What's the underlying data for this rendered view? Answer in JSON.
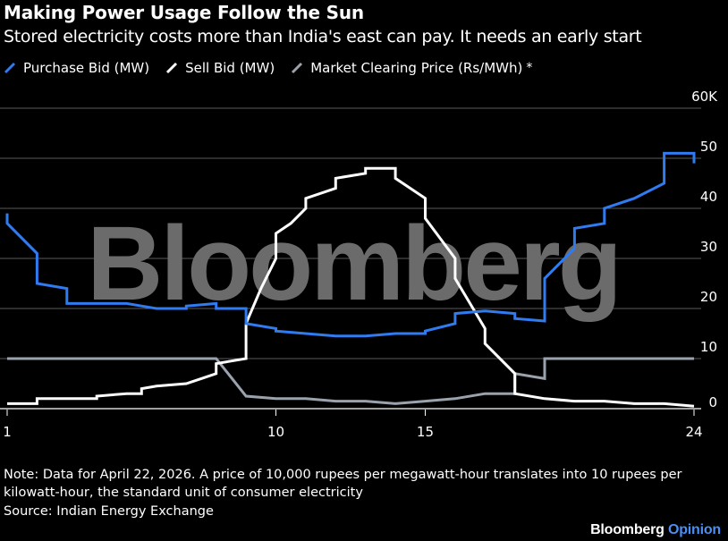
{
  "header": {
    "title": "Making Power Usage Follow the Sun",
    "subtitle": "Stored electricity costs more than India's east can pay. It needs an early start"
  },
  "legend": {
    "items": [
      {
        "label": "Purchase Bid (MW)",
        "color": "#2f7bef"
      },
      {
        "label": "Sell Bid (MW)",
        "color": "#ffffff"
      },
      {
        "label": "Market Clearing Price (Rs/MWh)",
        "color": "#9aa3ad"
      }
    ],
    "footnote_marker": "*"
  },
  "watermark": "Bloomberg",
  "chart_data": {
    "type": "line",
    "xlabel": "",
    "ylabel": "",
    "xlim": [
      1,
      24
    ],
    "ylim": [
      0,
      60
    ],
    "x_ticks": [
      "1",
      "10",
      "15",
      "24"
    ],
    "y_ticks": [
      "60K",
      "50",
      "40",
      "30",
      "20",
      "10",
      "0"
    ],
    "grid": true,
    "x_note": "The three series are stepped lines sampled at 15-minute blocks; points listed as [hour, value] in thousands.",
    "series": [
      {
        "name": "Purchase Bid (MW)",
        "color": "#2f7bef",
        "points": [
          [
            1.0,
            39
          ],
          [
            1.0,
            37
          ],
          [
            2.0,
            31
          ],
          [
            2.0,
            25
          ],
          [
            3.0,
            24
          ],
          [
            3.0,
            21
          ],
          [
            4.0,
            21
          ],
          [
            4.0,
            21
          ],
          [
            5.0,
            21
          ],
          [
            5.5,
            20.5
          ],
          [
            6.0,
            20
          ],
          [
            7.0,
            20
          ],
          [
            7.0,
            20.5
          ],
          [
            8.0,
            21
          ],
          [
            8.0,
            20
          ],
          [
            9.0,
            20
          ],
          [
            9.0,
            17
          ],
          [
            10.0,
            16
          ],
          [
            10.0,
            15.5
          ],
          [
            11.0,
            15
          ],
          [
            12.0,
            14.5
          ],
          [
            13.0,
            14.5
          ],
          [
            14.0,
            15
          ],
          [
            15.0,
            15
          ],
          [
            15.0,
            15.5
          ],
          [
            16.0,
            17
          ],
          [
            16.0,
            19
          ],
          [
            17.0,
            19.5
          ],
          [
            18.0,
            19
          ],
          [
            18.0,
            18
          ],
          [
            19.0,
            17.5
          ],
          [
            19.0,
            26
          ],
          [
            20.0,
            32
          ],
          [
            20.0,
            36
          ],
          [
            21.0,
            37
          ],
          [
            21.0,
            40
          ],
          [
            22.0,
            42
          ],
          [
            23.0,
            45
          ],
          [
            23.0,
            51
          ],
          [
            24.0,
            51
          ],
          [
            24.0,
            49
          ]
        ]
      },
      {
        "name": "Sell Bid (MW)",
        "color": "#ffffff",
        "points": [
          [
            1.0,
            1
          ],
          [
            2.0,
            1
          ],
          [
            2.0,
            2
          ],
          [
            3.0,
            2
          ],
          [
            4.0,
            2
          ],
          [
            4.0,
            2.5
          ],
          [
            5.0,
            3
          ],
          [
            5.5,
            3
          ],
          [
            5.5,
            4
          ],
          [
            6.0,
            4.5
          ],
          [
            7.0,
            5
          ],
          [
            7.5,
            6
          ],
          [
            8.0,
            7
          ],
          [
            8.0,
            9
          ],
          [
            9.0,
            10
          ],
          [
            9.0,
            17
          ],
          [
            9.5,
            24
          ],
          [
            10.0,
            30
          ],
          [
            10.0,
            35
          ],
          [
            10.5,
            37
          ],
          [
            11.0,
            40
          ],
          [
            11.0,
            42
          ],
          [
            12.0,
            44
          ],
          [
            12.0,
            46
          ],
          [
            13.0,
            47
          ],
          [
            13.0,
            48
          ],
          [
            14.0,
            48
          ],
          [
            14.0,
            46
          ],
          [
            15.0,
            42
          ],
          [
            15.0,
            38
          ],
          [
            16.0,
            30
          ],
          [
            16.0,
            26
          ],
          [
            17.0,
            16
          ],
          [
            17.0,
            13
          ],
          [
            18.0,
            7
          ],
          [
            18.0,
            3
          ],
          [
            19.0,
            2
          ],
          [
            20.0,
            1.5
          ],
          [
            21.0,
            1.5
          ],
          [
            22.0,
            1
          ],
          [
            23.0,
            1
          ],
          [
            24.0,
            0.5
          ]
        ]
      },
      {
        "name": "Market Clearing Price (Rs/MWh)",
        "color": "#9aa3ad",
        "points": [
          [
            1.0,
            10
          ],
          [
            8.0,
            10
          ],
          [
            9.0,
            2.5
          ],
          [
            10.0,
            2
          ],
          [
            11.0,
            2
          ],
          [
            12.0,
            1.5
          ],
          [
            13.0,
            1.5
          ],
          [
            14.0,
            1
          ],
          [
            15.0,
            1.5
          ],
          [
            16.0,
            2
          ],
          [
            17.0,
            3
          ],
          [
            18.0,
            3
          ],
          [
            18.0,
            7
          ],
          [
            19.0,
            6
          ],
          [
            19.0,
            10
          ],
          [
            24.0,
            10
          ]
        ]
      }
    ]
  },
  "footer": {
    "note": "Note: Data for April 22, 2026. A price of 10,000 rupees per megawatt-hour translates into 10 rupees per kilowatt-hour, the standard unit of consumer electricity",
    "source": "Source: Indian Energy Exchange",
    "brand_name": "Bloomberg",
    "brand_suffix": "Opinion"
  }
}
